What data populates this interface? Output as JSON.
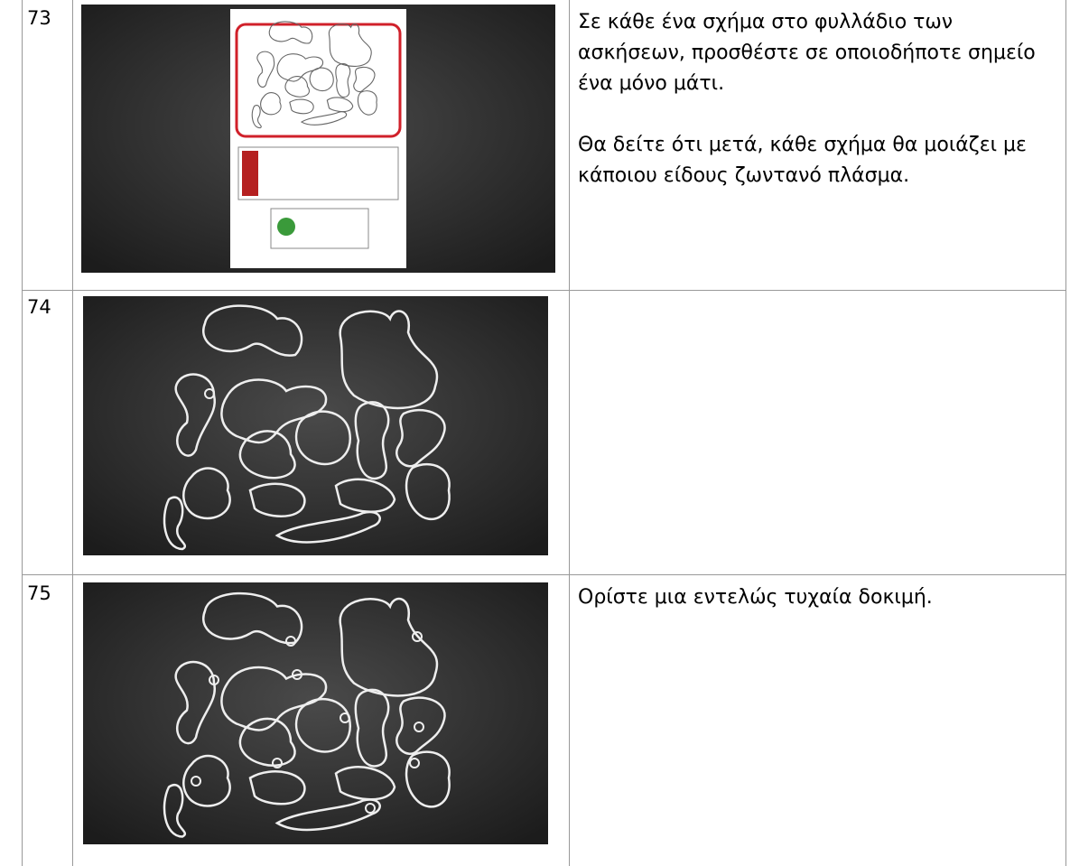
{
  "table": {
    "rows": [
      {
        "number": "73",
        "text": [
          "Σε κάθε ένα σχήμα στο φυλλάδιο των ασκήσεων, προσθέστε σε οποιοδήποτε σημείο ένα μόνο μάτι.",
          "Θα δείτε ότι μετά, κάθε σχήμα θα μοιάζει με κάποιου είδους ζωντανό πλάσμα."
        ]
      },
      {
        "number": "74"
      },
      {
        "number": "75",
        "text": [
          "Ορίστε μια εντελώς τυχαία δοκιμή."
        ]
      }
    ]
  }
}
